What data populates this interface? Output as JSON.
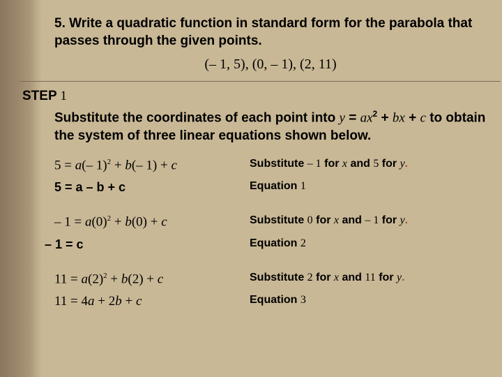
{
  "heading": "5. Write a quadratic function in standard form for the parabola that passes through the given points.",
  "points": "(– 1, 5), (0, – 1), (2, 11)",
  "step": {
    "label": "STEP",
    "num": "1"
  },
  "explain_pre": "Substitute the coordinates of each point into ",
  "explain_eq_y": "y",
  "explain_eq_mid": " = ",
  "explain_eq_a": "a",
  "explain_eq_x": "x",
  "explain_eq_sup": "2",
  "explain_eq_plus1": " + ",
  "explain_eq_b": "b",
  "explain_eq_x2": "x",
  "explain_eq_plus2": " + ",
  "explain_eq_c": "c",
  "explain_post": " to obtain the system of three linear equations shown below.",
  "rows": [
    {
      "lhs_html": "5 = <span class='i'>a</span>(– 1)<span class='sup'>2</span> + <span class='i'>b</span>(– 1) + <span class='i'>c</span>",
      "note_html": "Substitute <span class='ser'>– 1</span> for <span class='i'>x</span>  and <span class='ser'>5</span> for <span class='i'>y</span><span class='dot'>.</span>"
    },
    {
      "lhs_html": "5 = a – b + c",
      "lhs_class": "bold-sans",
      "note_html": "Equation <span class='ser'>1</span>"
    },
    {
      "spacer": true
    },
    {
      "lhs_html": "– 1 = <span class='i'>a</span>(0)<span class='sup'>2</span> + <span class='i'>b</span>(0) + <span class='i'>c</span>",
      "note_html": "Substitute <span class='ser'>0</span> for <span class='i'>x</span>  and <span class='ser'>– 1</span> for <span class='i'>y</span><span class='dot'>.</span>"
    },
    {
      "lhs_html": "<b>–</b> 1 = c",
      "lhs_class": "bold-sans",
      "lhs_indent": "-14px",
      "note_html": "Equation <span class='ser'>2</span>"
    },
    {
      "spacer": true
    },
    {
      "lhs_html": "11 = <span class='i'>a</span>(2)<span class='sup'>2</span> + <span class='i'>b</span>(2) + <span class='i'>c</span>",
      "note_html": "Substitute <span class='ser'>2</span> for <span class='i'>x</span>  and <span class='ser'>11</span> for <span class='i'>y</span><span class='dot'>.</span>"
    },
    {
      "lhs_html": "11 = 4<span class='i'>a</span> + 2<span class='i'>b</span> + <span class='i'>c</span>",
      "note_html": "Equation <span class='ser'>3</span>"
    }
  ]
}
